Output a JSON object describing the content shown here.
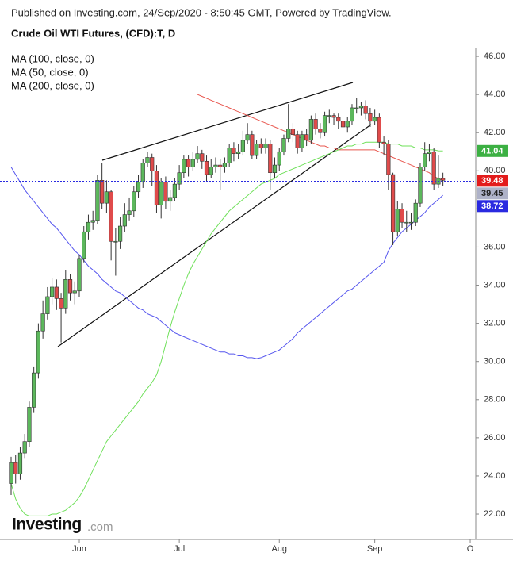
{
  "chart_data": {
    "type": "candlestick",
    "published": "Published on Investing.com, 24/Sep/2020 - 8:50:45 GMT, Powered by TradingView.",
    "title": "Crude Oil WTI Futures, (CFD):T, D",
    "logo": {
      "name": "Investing",
      "suffix": ".com"
    },
    "up_color": "#5cb85c",
    "down_color": "#e04b4b",
    "categories": [
      null,
      null,
      null,
      null,
      null,
      null,
      null,
      null,
      null,
      null,
      null,
      null,
      null,
      null,
      null,
      "Jun",
      null,
      null,
      null,
      null,
      null,
      null,
      null,
      null,
      null,
      null,
      null,
      null,
      null,
      null,
      null,
      null,
      null,
      null,
      null,
      null,
      null,
      "Jul",
      null,
      null,
      null,
      null,
      null,
      null,
      null,
      null,
      null,
      null,
      null,
      null,
      null,
      null,
      null,
      null,
      null,
      null,
      null,
      null,
      null,
      "Aug",
      null,
      null,
      null,
      null,
      null,
      null,
      null,
      null,
      null,
      null,
      null,
      null,
      null,
      null,
      null,
      null,
      null,
      null,
      null,
      null,
      "Sep",
      null,
      null,
      null,
      null,
      null,
      null,
      null,
      null,
      null,
      null,
      null,
      null,
      null,
      null,
      null,
      null,
      null,
      null,
      null,
      null,
      "O"
    ],
    "open": [
      23.6,
      24.7,
      24.1,
      25.2,
      25.8,
      27.6,
      29.4,
      31.6,
      32.5,
      33.4,
      33.9,
      33.3,
      32.8,
      34.3,
      33.6,
      33.7,
      35.4,
      36.8,
      37.3,
      37.4,
      39.5,
      38.3,
      38.9,
      36.3,
      36.3,
      37.1,
      37.7,
      37.9,
      38.9,
      39.4,
      40.4,
      40.7,
      40.0,
      38.2,
      39.4,
      38.4,
      38.6,
      39.3,
      39.9,
      40.6,
      40.2,
      40.6,
      40.9,
      40.5,
      39.8,
      40.2,
      40.3,
      40.2,
      40.4,
      41.2,
      40.9,
      41.0,
      41.6,
      41.9,
      40.8,
      41.4,
      41.2,
      41.4,
      39.9,
      40.3,
      41.0,
      41.7,
      42.2,
      41.9,
      41.2,
      41.9,
      41.6,
      42.7,
      42.2,
      42.0,
      42.9,
      42.9,
      42.8,
      42.6,
      42.3,
      42.6,
      43.3,
      43.3,
      43.4,
      43.0,
      42.6,
      42.8,
      41.5,
      41.4,
      39.8,
      36.8,
      38.0,
      37.3,
      37.3,
      37.3,
      38.3,
      40.2,
      40.9,
      41.0,
      39.3,
      39.6,
      null,
      null,
      null,
      null,
      null,
      null
    ],
    "high": [
      25.0,
      25.1,
      25.5,
      26.2,
      27.9,
      29.7,
      32.0,
      33.2,
      33.9,
      34.4,
      34.3,
      33.6,
      34.8,
      34.6,
      34.2,
      35.6,
      37.1,
      37.7,
      37.9,
      39.8,
      40.4,
      39.5,
      39.0,
      37.0,
      37.6,
      38.3,
      38.6,
      39.2,
      39.8,
      40.6,
      41.0,
      40.9,
      40.3,
      39.6,
      39.7,
      39.0,
      39.6,
      40.3,
      40.8,
      40.8,
      41.0,
      41.3,
      41.1,
      40.8,
      40.6,
      40.7,
      40.6,
      40.7,
      41.4,
      41.5,
      41.4,
      42.1,
      42.5,
      42.1,
      41.6,
      41.7,
      41.7,
      41.6,
      40.7,
      41.2,
      41.9,
      43.5,
      42.5,
      42.1,
      42.1,
      42.2,
      42.9,
      43.0,
      42.5,
      43.1,
      43.2,
      43.0,
      43.0,
      42.9,
      42.8,
      43.5,
      43.8,
      43.6,
      43.7,
      43.3,
      43.2,
      43.0,
      41.8,
      41.6,
      39.9,
      38.4,
      38.3,
      37.9,
      37.8,
      38.5,
      40.4,
      41.5,
      41.4,
      41.2,
      40.8,
      39.9,
      null,
      null,
      null,
      null,
      null,
      null
    ],
    "low": [
      23.0,
      23.6,
      23.8,
      24.9,
      25.5,
      27.3,
      29.1,
      31.2,
      32.2,
      33.0,
      32.7,
      31.0,
      32.5,
      33.2,
      33.0,
      33.4,
      35.2,
      36.4,
      36.9,
      37.2,
      38.0,
      37.8,
      35.3,
      34.5,
      35.9,
      36.8,
      37.4,
      37.6,
      38.6,
      39.1,
      40.2,
      39.2,
      37.8,
      37.5,
      38.0,
      37.9,
      38.4,
      39.0,
      39.6,
      39.7,
      40.0,
      40.4,
      40.1,
      39.4,
      39.6,
      39.9,
      39.0,
      39.9,
      40.2,
      40.5,
      40.6,
      40.8,
      41.4,
      40.6,
      40.6,
      40.9,
      40.9,
      39.0,
      39.6,
      40.0,
      40.8,
      41.5,
      41.5,
      40.9,
      41.0,
      41.3,
      41.4,
      41.9,
      41.7,
      41.8,
      42.5,
      42.4,
      42.2,
      41.9,
      42.0,
      42.4,
      43.0,
      42.9,
      42.7,
      42.3,
      42.4,
      41.2,
      40.8,
      39.0,
      36.1,
      36.6,
      37.0,
      36.8,
      36.9,
      37.1,
      38.1,
      40.0,
      40.5,
      39.0,
      39.1,
      39.2,
      null,
      null,
      null,
      null,
      null,
      null
    ],
    "close": [
      24.7,
      24.1,
      25.2,
      25.8,
      27.6,
      29.4,
      31.6,
      32.5,
      33.4,
      33.9,
      33.3,
      32.8,
      34.3,
      33.6,
      33.7,
      35.4,
      36.8,
      37.3,
      37.4,
      39.5,
      38.3,
      38.9,
      36.3,
      36.3,
      37.1,
      37.7,
      37.9,
      38.9,
      39.4,
      40.4,
      40.7,
      40.0,
      38.2,
      39.4,
      38.4,
      38.6,
      39.3,
      39.9,
      40.6,
      40.2,
      40.6,
      40.9,
      40.5,
      39.8,
      40.2,
      40.3,
      40.2,
      40.4,
      41.2,
      40.9,
      41.0,
      41.6,
      41.9,
      40.8,
      41.4,
      41.2,
      41.4,
      39.9,
      40.3,
      41.0,
      41.7,
      42.2,
      41.9,
      41.2,
      41.9,
      41.6,
      42.7,
      42.2,
      42.0,
      42.9,
      42.9,
      42.8,
      42.6,
      42.3,
      42.6,
      43.3,
      43.3,
      43.4,
      43.0,
      42.6,
      42.8,
      41.5,
      41.4,
      39.8,
      36.8,
      38.0,
      37.3,
      37.3,
      37.3,
      38.3,
      40.2,
      40.9,
      41.0,
      39.3,
      39.6,
      39.5,
      null,
      null,
      null,
      null,
      null,
      null
    ],
    "series": [
      {
        "name": "MA (100, close, 0)",
        "color": "#e8574f",
        "values": [
          null,
          null,
          null,
          null,
          null,
          null,
          null,
          null,
          null,
          null,
          null,
          null,
          null,
          null,
          null,
          null,
          null,
          null,
          null,
          null,
          null,
          null,
          null,
          null,
          null,
          null,
          null,
          null,
          null,
          null,
          null,
          null,
          null,
          null,
          null,
          null,
          null,
          null,
          null,
          null,
          null,
          44.0,
          43.9,
          43.8,
          43.7,
          43.6,
          43.5,
          43.4,
          43.3,
          43.2,
          43.1,
          43.0,
          42.9,
          42.8,
          42.7,
          42.6,
          42.5,
          42.4,
          42.3,
          42.2,
          42.1,
          42.0,
          41.9,
          41.8,
          41.7,
          41.6,
          41.5,
          41.4,
          41.3,
          41.3,
          41.2,
          41.2,
          41.1,
          41.1,
          41.1,
          41.1,
          41.1,
          41.1,
          41.1,
          41.1,
          41.1,
          41.0,
          40.9,
          40.8,
          40.7,
          40.6,
          40.5,
          40.4,
          40.3,
          40.2,
          40.1,
          40.0,
          39.9,
          39.7,
          39.6,
          39.48,
          null,
          null,
          null,
          null,
          null,
          null
        ]
      },
      {
        "name": "MA (50, close, 0)",
        "color": "#6fe05a",
        "values": [
          23.6,
          22.8,
          22.3,
          22.0,
          21.9,
          21.9,
          21.9,
          21.9,
          21.9,
          22.0,
          22.0,
          22.1,
          22.2,
          22.4,
          22.6,
          22.9,
          23.3,
          23.8,
          24.3,
          24.8,
          25.3,
          25.8,
          26.1,
          26.4,
          26.7,
          27.0,
          27.3,
          27.6,
          27.9,
          28.3,
          28.6,
          28.9,
          29.3,
          30.0,
          30.9,
          31.8,
          32.6,
          33.3,
          34.0,
          34.6,
          35.1,
          35.5,
          35.9,
          36.3,
          36.7,
          37.0,
          37.3,
          37.6,
          37.9,
          38.1,
          38.3,
          38.5,
          38.7,
          38.9,
          39.1,
          39.3,
          39.4,
          39.5,
          39.6,
          39.8,
          39.9,
          40.0,
          40.1,
          40.2,
          40.3,
          40.4,
          40.5,
          40.6,
          40.7,
          40.8,
          40.9,
          41.0,
          41.1,
          41.2,
          41.3,
          41.3,
          41.4,
          41.4,
          41.5,
          41.5,
          41.5,
          41.5,
          41.5,
          41.4,
          41.4,
          41.4,
          41.3,
          41.3,
          41.3,
          41.2,
          41.2,
          41.1,
          41.1,
          41.1,
          41.05,
          41.04,
          null,
          null,
          null,
          null,
          null,
          null
        ]
      },
      {
        "name": "MA (200, close, 0)",
        "color": "#5555ee",
        "values": [
          40.2,
          39.8,
          39.4,
          39.0,
          38.7,
          38.4,
          38.1,
          37.8,
          37.5,
          37.2,
          37.0,
          36.7,
          36.4,
          36.1,
          35.8,
          35.6,
          35.3,
          35.0,
          34.8,
          34.6,
          34.3,
          34.1,
          33.9,
          33.7,
          33.6,
          33.4,
          33.2,
          33.0,
          32.8,
          32.7,
          32.5,
          32.4,
          32.3,
          32.1,
          31.9,
          31.7,
          31.5,
          31.4,
          31.3,
          31.2,
          31.1,
          31.0,
          30.9,
          30.8,
          30.7,
          30.6,
          30.5,
          30.5,
          30.4,
          30.4,
          30.3,
          30.3,
          30.2,
          30.2,
          30.15,
          30.2,
          30.3,
          30.4,
          30.5,
          30.6,
          30.8,
          31.0,
          31.2,
          31.5,
          31.7,
          31.9,
          32.1,
          32.3,
          32.5,
          32.7,
          32.9,
          33.1,
          33.3,
          33.5,
          33.7,
          33.8,
          34.0,
          34.2,
          34.4,
          34.6,
          34.8,
          35.0,
          35.2,
          35.8,
          36.2,
          36.5,
          36.8,
          37.0,
          37.2,
          37.4,
          37.6,
          37.8,
          38.1,
          38.3,
          38.5,
          38.72,
          null,
          null,
          null,
          null,
          null,
          null
        ]
      }
    ],
    "price_tags": [
      {
        "value": 41.04,
        "color": "#3cb043"
      },
      {
        "value": 39.48,
        "color": "#e31c1c"
      },
      {
        "value": 39.45,
        "color": "#aeb2c8",
        "price_line": true
      },
      {
        "value": 38.72,
        "color": "#2a2ae0"
      }
    ],
    "ylim": [
      20.67,
      46.46
    ],
    "yticks": [
      {
        "value": 22,
        "label": "22.00"
      },
      {
        "value": 24,
        "label": "24.00"
      },
      {
        "value": 26,
        "label": "26.00"
      },
      {
        "value": 28,
        "label": "28.00"
      },
      {
        "value": 30,
        "label": "30.00"
      },
      {
        "value": 32,
        "label": "32.00"
      },
      {
        "value": 34,
        "label": "34.00"
      },
      {
        "value": 36,
        "label": "36.00"
      },
      {
        "value": 38,
        "label": "38.00"
      },
      {
        "value": 40,
        "label": "40.00"
      },
      {
        "value": 42,
        "label": "42.00"
      },
      {
        "value": 44,
        "label": "44.00"
      },
      {
        "value": 46,
        "label": "46.00"
      }
    ]
  }
}
